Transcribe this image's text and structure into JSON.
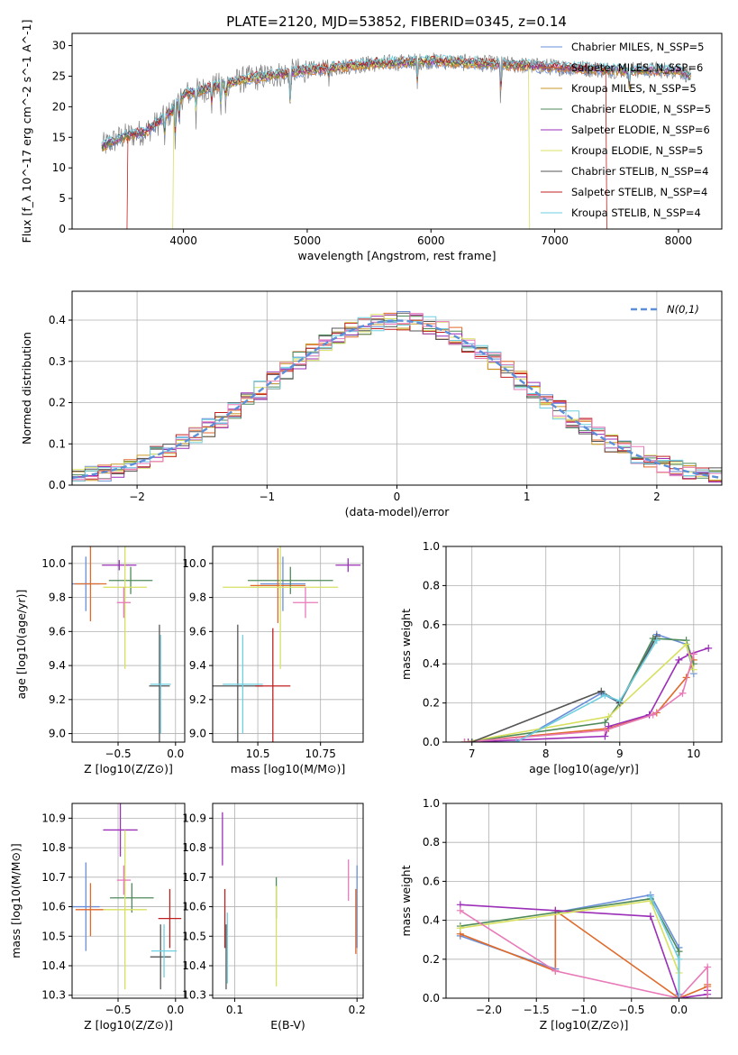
{
  "title": "PLATE=2120, MJD=53852, FIBERID=0345, z=0.14",
  "colors": {
    "Chabrier MILES": "#6a8fd8",
    "Salpeter MILES": "#e06a2a",
    "Kroupa MILES": "#c99a28",
    "Chabrier ELODIE": "#4f8a5a",
    "Salpeter ELODIE": "#9b2fb8",
    "Kroupa ELODIE": "#d8e060",
    "Chabrier STELIB": "#555555",
    "Salpeter STELIB": "#c02020",
    "Kroupa STELIB": "#6ecfe0",
    "pink": "#e87ab8",
    "normal": "#5b8fd9"
  },
  "chart_data": [
    {
      "type": "line",
      "id": "spectrum",
      "xlabel": "wavelength [Angstrom, rest frame]",
      "ylabel": "Flux [f_λ 10^-17 erg cm^-2 s^-1 A^-1]",
      "xlim": [
        3100,
        8350
      ],
      "ylim": [
        0,
        32
      ],
      "xticks": [
        4000,
        5000,
        6000,
        7000,
        8000
      ],
      "yticks": [
        0,
        5,
        10,
        15,
        20,
        25,
        30
      ],
      "legend": "top-right",
      "series": [
        {
          "name": "Chabrier MILES, N_SSP=5"
        },
        {
          "name": "Salpeter MILES, N_SSP=6"
        },
        {
          "name": "Kroupa MILES, N_SSP=5"
        },
        {
          "name": "Chabrier ELODIE, N_SSP=5"
        },
        {
          "name": "Salpeter ELODIE, N_SSP=6"
        },
        {
          "name": "Kroupa ELODIE, N_SSP=5"
        },
        {
          "name": "Chabrier STELIB, N_SSP=4"
        },
        {
          "name": "Salpeter STELIB, N_SSP=4"
        },
        {
          "name": "Kroupa STELIB, N_SSP=4"
        }
      ],
      "continuum": [
        [
          3340,
          13.5
        ],
        [
          3500,
          15
        ],
        [
          3700,
          16
        ],
        [
          3900,
          19
        ],
        [
          4000,
          22
        ],
        [
          4200,
          23
        ],
        [
          4500,
          24.5
        ],
        [
          5000,
          26
        ],
        [
          5500,
          27
        ],
        [
          6000,
          27.5
        ],
        [
          6500,
          27
        ],
        [
          7000,
          26.5
        ],
        [
          7500,
          26
        ],
        [
          8000,
          26
        ],
        [
          8100,
          25
        ]
      ],
      "data_range": [
        3340,
        8100
      ]
    },
    {
      "type": "line",
      "id": "residuals",
      "xlabel": "(data-model)/error",
      "ylabel": "Normed distribution",
      "xlim": [
        -2.5,
        2.5
      ],
      "ylim": [
        0,
        0.47
      ],
      "xticks": [
        -2,
        -1,
        0,
        1,
        2
      ],
      "yticks": [
        0.0,
        0.1,
        0.2,
        0.3,
        0.4
      ],
      "legend": "top-right",
      "legend_label": "N(0,1)"
    },
    {
      "type": "scatter",
      "id": "age_vs_Z",
      "xlabel": "Z [log10(Z/Z⊙)]",
      "ylabel": "age  [log10(age/yr)]",
      "xlim": [
        -0.9,
        0.08
      ],
      "ylim": [
        8.95,
        10.1
      ],
      "xticks": [
        -0.5,
        0.0
      ],
      "yticks": [
        9.0,
        9.2,
        9.4,
        9.6,
        9.8,
        10.0
      ],
      "points": [
        {
          "c": "Chabrier MILES",
          "x": -0.78,
          "y": 9.88,
          "xe": 0.12,
          "ye": 0.16
        },
        {
          "c": "Salpeter MILES",
          "x": -0.74,
          "y": 9.88,
          "xe": 0.14,
          "ye": 0.22
        },
        {
          "c": "Chabrier ELODIE",
          "x": -0.39,
          "y": 9.9,
          "xe": 0.19,
          "ye": 0.08
        },
        {
          "c": "Salpeter ELODIE",
          "x": -0.49,
          "y": 9.99,
          "xe": 0.15,
          "ye": 0.03
        },
        {
          "c": "Kroupa ELODIE",
          "x": -0.44,
          "y": 9.86,
          "xe": 0.19,
          "ye": 0.48
        },
        {
          "c": "pink",
          "x": -0.45,
          "y": 9.77,
          "xe": 0.06,
          "ye": 0.09
        },
        {
          "c": "Chabrier STELIB",
          "x": -0.14,
          "y": 9.28,
          "xe": 0.09,
          "ye": 0.36
        },
        {
          "c": "Kroupa STELIB",
          "x": -0.13,
          "y": 9.29,
          "xe": 0.09,
          "ye": 0.29
        }
      ]
    },
    {
      "type": "scatter",
      "id": "age_vs_mass",
      "xlabel": "mass [log10(M/M⊙)]",
      "ylabel": "",
      "xlim": [
        10.32,
        10.92
      ],
      "ylim": [
        8.95,
        10.1
      ],
      "xticks": [
        10.5,
        10.75
      ],
      "yticks": [
        9.0,
        9.2,
        9.4,
        9.6,
        9.8,
        10.0
      ],
      "points": [
        {
          "c": "Chabrier MILES",
          "x": 10.6,
          "y": 9.88,
          "xe": 0.09,
          "ye": 0.16
        },
        {
          "c": "Salpeter MILES",
          "x": 10.58,
          "y": 9.87,
          "xe": 0.11,
          "ye": 0.22
        },
        {
          "c": "Chabrier ELODIE",
          "x": 10.63,
          "y": 9.9,
          "xe": 0.17,
          "ye": 0.08
        },
        {
          "c": "Salpeter ELODIE",
          "x": 10.86,
          "y": 9.99,
          "xe": 0.05,
          "ye": 0.04
        },
        {
          "c": "Kroupa ELODIE",
          "x": 10.59,
          "y": 9.86,
          "xe": 0.23,
          "ye": 0.48
        },
        {
          "c": "pink",
          "x": 10.69,
          "y": 9.77,
          "xe": 0.05,
          "ye": 0.09
        },
        {
          "c": "Chabrier STELIB",
          "x": 10.42,
          "y": 9.28,
          "xe": 0.1,
          "ye": 0.36
        },
        {
          "c": "Salpeter STELIB",
          "x": 10.56,
          "y": 9.28,
          "xe": 0.07,
          "ye": 0.34
        },
        {
          "c": "Kroupa STELIB",
          "x": 10.44,
          "y": 9.29,
          "xe": 0.08,
          "ye": 0.29
        }
      ]
    },
    {
      "type": "line",
      "id": "weight_vs_age",
      "xlabel": "age  [log10(age/yr)]",
      "ylabel": "mass weight",
      "xlim": [
        6.65,
        10.38
      ],
      "ylim": [
        0,
        1
      ],
      "xticks": [
        7,
        8,
        9,
        10
      ],
      "yticks": [
        0.0,
        0.2,
        0.4,
        0.6,
        0.8,
        1.0
      ],
      "series": [
        {
          "c": "Chabrier MILES",
          "x": [
            7.0,
            7.6,
            8.75,
            9.0,
            9.5,
            9.9,
            10.0
          ],
          "y": [
            0.0,
            0.0,
            0.25,
            0.2,
            0.55,
            0.5,
            0.35
          ]
        },
        {
          "c": "Salpeter MILES",
          "x": [
            6.9,
            8.85,
            9.5,
            9.9,
            10.0
          ],
          "y": [
            0.0,
            0.07,
            0.15,
            0.33,
            0.42
          ]
        },
        {
          "c": "Chabrier ELODIE",
          "x": [
            6.9,
            8.8,
            9.0,
            9.45,
            9.9,
            10.0
          ],
          "y": [
            0.0,
            0.1,
            0.2,
            0.53,
            0.52,
            0.4
          ]
        },
        {
          "c": "Salpeter ELODIE",
          "x": [
            6.95,
            8.8,
            8.85,
            9.4,
            9.8,
            9.95,
            10.2
          ],
          "y": [
            0.0,
            0.03,
            0.08,
            0.14,
            0.42,
            0.45,
            0.48
          ]
        },
        {
          "c": "Kroupa ELODIE",
          "x": [
            6.9,
            8.85,
            9.9,
            10.0
          ],
          "y": [
            0.0,
            0.13,
            0.5,
            0.37
          ]
        },
        {
          "c": "pink",
          "x": [
            6.9,
            8.8,
            9.45,
            9.85,
            10.0
          ],
          "y": [
            0.0,
            0.06,
            0.14,
            0.25,
            0.45
          ]
        },
        {
          "c": "Chabrier STELIB",
          "x": [
            7.0,
            8.75,
            9.0,
            9.5
          ],
          "y": [
            0.0,
            0.26,
            0.2,
            0.54
          ]
        },
        {
          "c": "Kroupa STELIB",
          "x": [
            7.6,
            8.8,
            9.0,
            9.5
          ],
          "y": [
            0.0,
            0.24,
            0.21,
            0.52
          ]
        }
      ]
    },
    {
      "type": "scatter",
      "id": "mass_vs_Z",
      "xlabel": "Z [log10(Z/Z⊙)]",
      "ylabel": "mass [log10(M/M⊙)]",
      "xlim": [
        -0.9,
        0.08
      ],
      "ylim": [
        10.29,
        10.95
      ],
      "xticks": [
        -0.5,
        0.0
      ],
      "yticks": [
        10.3,
        10.4,
        10.5,
        10.6,
        10.7,
        10.8,
        10.9
      ],
      "points": [
        {
          "c": "Chabrier MILES",
          "x": -0.78,
          "y": 10.6,
          "xe": 0.12,
          "ye": 0.15
        },
        {
          "c": "Salpeter MILES",
          "x": -0.74,
          "y": 10.59,
          "xe": 0.13,
          "ye": 0.09
        },
        {
          "c": "Chabrier ELODIE",
          "x": -0.38,
          "y": 10.63,
          "xe": 0.19,
          "ye": 0.05
        },
        {
          "c": "Salpeter ELODIE",
          "x": -0.48,
          "y": 10.86,
          "xe": 0.15,
          "ye": 0.09
        },
        {
          "c": "Kroupa ELODIE",
          "x": -0.44,
          "y": 10.59,
          "xe": 0.19,
          "ye": 0.27
        },
        {
          "c": "pink",
          "x": -0.45,
          "y": 10.69,
          "xe": 0.06,
          "ye": 0.05
        },
        {
          "c": "Chabrier STELIB",
          "x": -0.13,
          "y": 10.43,
          "xe": 0.09,
          "ye": 0.11
        },
        {
          "c": "Salpeter STELIB",
          "x": -0.05,
          "y": 10.56,
          "xe": 0.1,
          "ye": 0.1
        },
        {
          "c": "Kroupa STELIB",
          "x": -0.1,
          "y": 10.45,
          "xe": 0.11,
          "ye": 0.09
        }
      ]
    },
    {
      "type": "scatter",
      "id": "mass_vs_EBV",
      "xlabel": "E(B-V)",
      "ylabel": "",
      "xlim": [
        0.082,
        0.205
      ],
      "ylim": [
        10.29,
        10.95
      ],
      "xticks": [
        0.1,
        0.2
      ],
      "yticks": [
        10.3,
        10.4,
        10.5,
        10.6,
        10.7,
        10.8,
        10.9
      ],
      "points": [
        {
          "c": "Salpeter ELODIE",
          "x": 0.09,
          "y": 10.83,
          "xe": 0,
          "ye": 0.09
        },
        {
          "c": "Salpeter STELIB",
          "x": 0.092,
          "y": 10.56,
          "xe": 0,
          "ye": 0.1
        },
        {
          "c": "Chabrier STELIB",
          "x": 0.093,
          "y": 10.43,
          "xe": 0,
          "ye": 0.11
        },
        {
          "c": "Kroupa STELIB",
          "x": 0.094,
          "y": 10.46,
          "xe": 0,
          "ye": 0.12
        },
        {
          "c": "Chabrier ELODIE",
          "x": 0.134,
          "y": 10.63,
          "xe": 0,
          "ye": 0.07
        },
        {
          "c": "Kroupa ELODIE",
          "x": 0.134,
          "y": 10.5,
          "xe": 0,
          "ye": 0.17
        },
        {
          "c": "pink",
          "x": 0.193,
          "y": 10.69,
          "xe": 0,
          "ye": 0.07
        },
        {
          "c": "Salpeter MILES",
          "x": 0.199,
          "y": 10.55,
          "xe": 0,
          "ye": 0.11
        },
        {
          "c": "Chabrier MILES",
          "x": 0.2,
          "y": 10.6,
          "xe": 0,
          "ye": 0.14
        }
      ]
    },
    {
      "type": "line",
      "id": "weight_vs_Z",
      "xlabel": "Z [log10(Z/Z⊙)]",
      "ylabel": "mass weight",
      "xlim": [
        -2.45,
        0.45
      ],
      "ylim": [
        0,
        1
      ],
      "xticks": [
        -2.0,
        -1.5,
        -1.0,
        -0.5,
        0.0
      ],
      "yticks": [
        0.0,
        0.2,
        0.4,
        0.6,
        0.8,
        1.0
      ],
      "series": [
        {
          "c": "Chabrier MILES",
          "x": [
            -2.3,
            -1.3,
            -1.3,
            -0.3,
            0.0,
            0.0,
            0.0
          ],
          "y": [
            0.32,
            0.15,
            0.44,
            0.53,
            0.26,
            0.02,
            0.0
          ]
        },
        {
          "c": "Salpeter MILES",
          "x": [
            -2.3,
            -1.3,
            -1.3,
            0.0,
            0.3,
            0.3
          ],
          "y": [
            0.33,
            0.14,
            0.45,
            0.0,
            0.06,
            0.07
          ]
        },
        {
          "c": "Chabrier ELODIE",
          "x": [
            -2.3,
            -0.3,
            0.0,
            0.0
          ],
          "y": [
            0.37,
            0.51,
            0.24,
            0.0
          ]
        },
        {
          "c": "Salpeter ELODIE",
          "x": [
            -2.3,
            -1.3,
            -0.3,
            0.0,
            0.3,
            0.3
          ],
          "y": [
            0.48,
            0.45,
            0.42,
            0.0,
            0.02,
            0.04
          ]
        },
        {
          "c": "Kroupa ELODIE",
          "x": [
            -2.3,
            -0.3,
            0.0,
            0.0
          ],
          "y": [
            0.36,
            0.5,
            0.13,
            0.0
          ]
        },
        {
          "c": "pink",
          "x": [
            -2.3,
            -1.3,
            0.0,
            0.3,
            0.3
          ],
          "y": [
            0.45,
            0.14,
            0.0,
            0.16,
            0.0
          ]
        },
        {
          "c": "Kroupa STELIB",
          "x": [
            -0.3,
            0.0,
            0.0
          ],
          "y": [
            0.52,
            0.2,
            0.0
          ]
        }
      ]
    }
  ]
}
